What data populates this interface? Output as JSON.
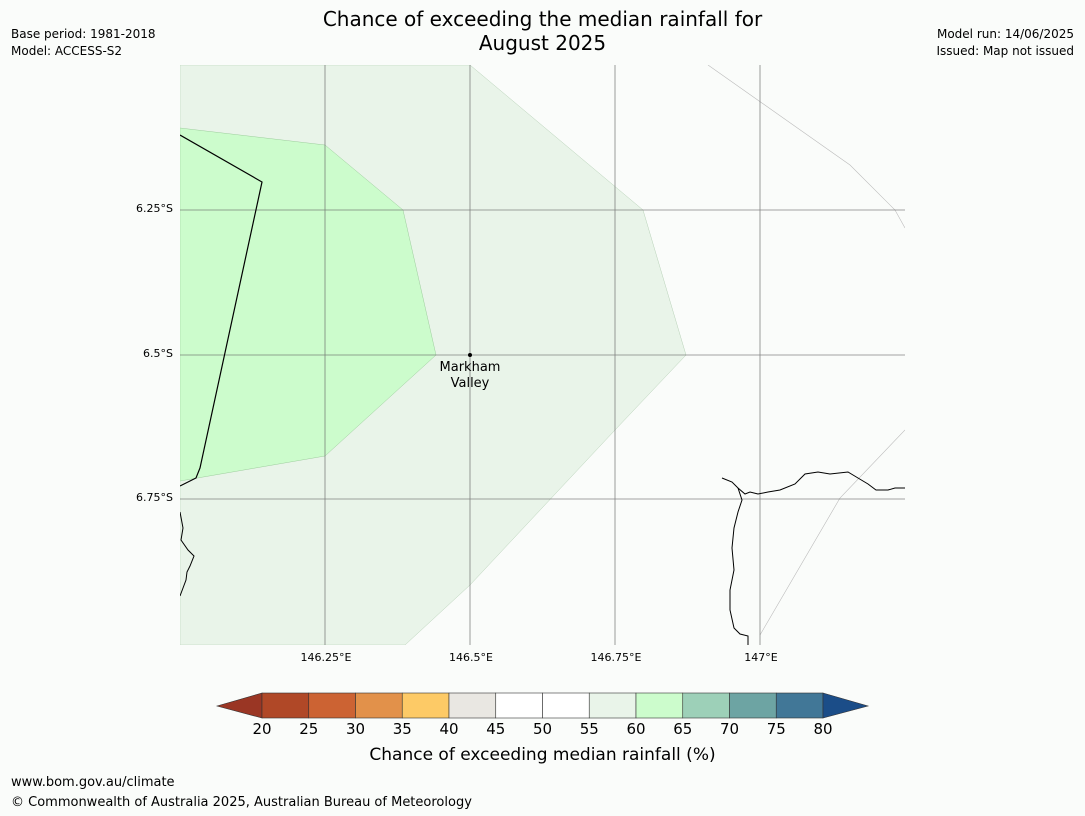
{
  "title": {
    "line1": "Chance of exceeding the median rainfall for",
    "line2": "August 2025"
  },
  "meta_left": {
    "base_period": "Base period: 1981-2018",
    "model": "Model: ACCESS-S2"
  },
  "meta_right": {
    "model_run": "Model run: 14/06/2025",
    "issued": "Issued: Map not issued"
  },
  "map": {
    "lat_ticks": [
      "6.25°S",
      "6.5°S",
      "6.75°S"
    ],
    "lon_ticks": [
      "146.25°E",
      "146.5°E",
      "146.75°E",
      "147°E"
    ],
    "place": {
      "name_line1": "Markham",
      "name_line2": "Valley"
    },
    "colors": {
      "band_55_60": "#e9f4e9",
      "band_60_65": "#ccfccc",
      "background": "#fafcfa"
    }
  },
  "colorbar": {
    "title": "Chance of exceeding median rainfall (%)",
    "labels": [
      "20",
      "25",
      "30",
      "35",
      "40",
      "45",
      "50",
      "55",
      "60",
      "65",
      "70",
      "75",
      "80"
    ],
    "below_color": "#9a3624",
    "above_color": "#1b4d88",
    "segment_colors": [
      "#b04827",
      "#cc6333",
      "#e2914a",
      "#fdca66",
      "#e9e7e2",
      "#ffffff",
      "#ffffff",
      "#e9f4e9",
      "#ccfccc",
      "#9dd0b8",
      "#6da4a3",
      "#417797"
    ]
  },
  "footer": {
    "url": "www.bom.gov.au/climate",
    "copyright": "© Commonwealth of Australia 2025, Australian Bureau of Meteorology"
  }
}
